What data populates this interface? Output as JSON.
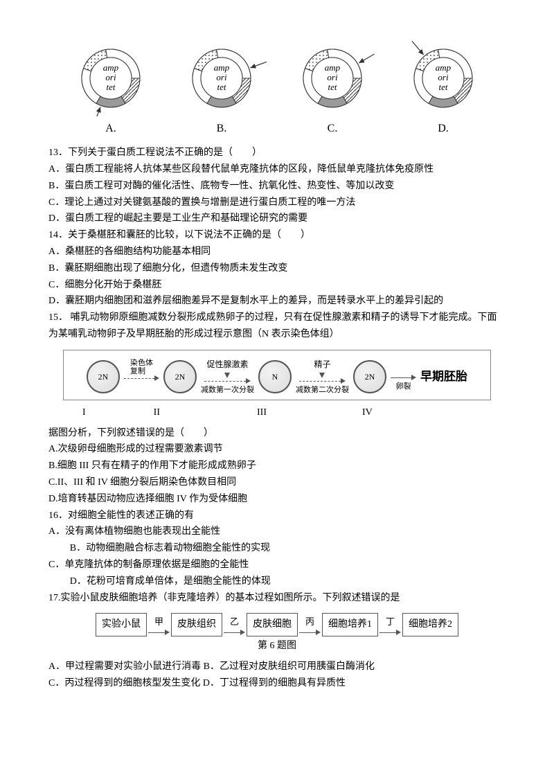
{
  "plasmid": {
    "items": [
      {
        "label": "A.",
        "arrow_angle": 200,
        "arrow_text_anchor": "end"
      },
      {
        "label": "B.",
        "arrow_angle": 70,
        "arrow_text_anchor": "start"
      },
      {
        "label": "C.",
        "arrow_angle": 60,
        "arrow_text_anchor": "start"
      },
      {
        "label": "D.",
        "arrow_angle": 320,
        "arrow_text_anchor": "start"
      }
    ],
    "inner_labels": {
      "top": "amp",
      "mid": "ori",
      "bot": "tet"
    },
    "segments": [
      {
        "start": 90,
        "end": 150,
        "fill": "hatch"
      },
      {
        "start": 150,
        "end": 210,
        "fill": "#9a9a9a"
      },
      {
        "start": 210,
        "end": 290,
        "fill": "#fff"
      },
      {
        "start": 290,
        "end": 350,
        "fill": "dots"
      },
      {
        "start": 350,
        "end": 450,
        "fill": "#fff"
      }
    ],
    "colors": {
      "stroke": "#333",
      "ring_inner": "#fff"
    }
  },
  "q13": {
    "stem": "13．下列关于蛋白质工程说法不正确的是（　　）",
    "A": "A．蛋白质工程能将人抗体某些区段替代鼠单克隆抗体的区段，降低鼠单克隆抗体免疫原性",
    "B": "B．蛋白质工程可对酶的催化活性、底物专一性、抗氧化性、热变性、等加以改变",
    "C": "C．理论上通过对关键氨基酸的置换与增删是进行蛋白质工程的唯一方法",
    "D": "D．蛋白质工程的崛起主要是工业生产和基础理论研究的需要"
  },
  "q14": {
    "stem": "14．关于桑椹胚和囊胚的比较，以下说法不正确的是（　　）",
    "A": "A．桑椹胚的各细胞结构功能基本相同",
    "B": "B．囊胚期细胞出现了细胞分化，但遗传物质未发生改变",
    "C": "C．细胞分化开始于桑椹胚",
    "D": "D．囊胚期内细胞团和滋养层细胞差异不是复制水平上的差异，而是转录水平上的差异引起的"
  },
  "q15": {
    "stem1": "15． 哺乳动物卵原细胞减数分裂形成成熟卵子的过程，只有在促性腺激素和精子的诱导下才能完成。下面为某哺乳动物卵子及早期胚胎的形成过程示意图（N 表示染色体组）",
    "fig": {
      "cells": [
        "2N",
        "2N",
        "N",
        "2N"
      ],
      "romans": [
        "I",
        "II",
        "III",
        "IV"
      ],
      "arrow_labels": [
        "染色体\n复制",
        "减数第一次分裂",
        "减数第二次分裂",
        "卵裂"
      ],
      "injects": [
        "促性腺激素",
        "精子"
      ],
      "end_label": "早期胚胎"
    },
    "stem2": "据图分析，下列叙述错误的是（　　）",
    "A": "A.次级卵母细胞形成的过程需要激素调节",
    "B": "B.细胞 III 只有在精子的作用下才能形成成熟卵子",
    "C": "C.II、III 和 IV 细胞分裂后期染色体数目相同",
    "D": "D.培育转基因动物应选择细胞 IV 作为受体细胞"
  },
  "q16": {
    "stem": "16．对细胞全能性的表述正确的有",
    "A": "A．没有离体植物细胞也能表现出全能性",
    "B": "B．动物细胞融合标志着动物细胞全能性的实现",
    "C": "C．单克隆抗体的制备原理依据是细胞的全能性",
    "D": "D．花粉可培育成单倍体，是细胞全能性的体现"
  },
  "q17": {
    "stem": "17.实验小鼠皮肤细胞培养（非克隆培养）的基本过程如图所示。下列叙述错误的是",
    "fig": {
      "boxes": [
        "实验小鼠",
        "皮肤组织",
        "皮肤细胞",
        "细胞培养1",
        "细胞培养2"
      ],
      "arrows": [
        "甲",
        "乙",
        "丙",
        "丁"
      ],
      "caption": "第 6 题图"
    },
    "A": "A．甲过程需要对实验小鼠进行消毒  B．乙过程对皮肤组织可用胰蛋白酶消化",
    "C": "C．丙过程得到的细胞核型发生变化  D．丁过程得到的细胞具有异质性"
  }
}
